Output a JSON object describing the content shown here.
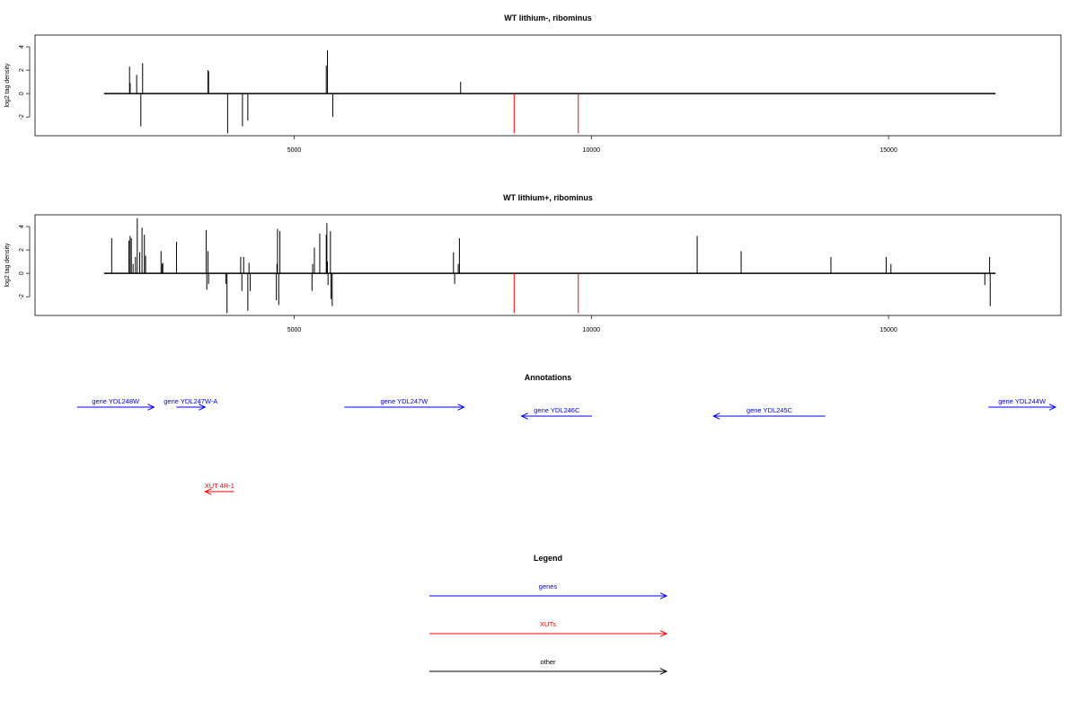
{
  "colors": {
    "genes": "#0000ff",
    "xuts": "#ff0000",
    "other": "#000000",
    "baseline": "#000000"
  },
  "chart_data": [
    {
      "type": "bar",
      "title": "WT lithium-, ribominus",
      "ylabel": "log2 tag density",
      "xlim": [
        640,
        17900
      ],
      "ylim": [
        -3.6,
        5.0
      ],
      "line_range": [
        1800,
        16800
      ],
      "yticks": [
        -2,
        0,
        2,
        4
      ],
      "xticks": [
        5000,
        10000,
        15000
      ],
      "grid": false,
      "bars": [
        {
          "x": 2230,
          "y": 2.3
        },
        {
          "x": 2240,
          "y": 0.9
        },
        {
          "x": 2350,
          "y": 1.6
        },
        {
          "x": 2420,
          "y": -2.8
        },
        {
          "x": 2450,
          "y": 2.6
        },
        {
          "x": 3550,
          "y": 2.0
        },
        {
          "x": 3560,
          "y": 1.9
        },
        {
          "x": 3880,
          "y": -3.4
        },
        {
          "x": 4130,
          "y": -2.8
        },
        {
          "x": 4220,
          "y": -2.3
        },
        {
          "x": 5540,
          "y": 2.4
        },
        {
          "x": 5560,
          "y": 3.7
        },
        {
          "x": 5650,
          "y": -2.0
        },
        {
          "x": 7800,
          "y": 1.0
        },
        {
          "x": 8700,
          "y": -3.4,
          "red": true
        },
        {
          "x": 9780,
          "y": -3.4,
          "red": true
        }
      ]
    },
    {
      "type": "bar",
      "title": "WT lithium+, ribominus",
      "ylabel": "log2 tag density",
      "xlim": [
        640,
        17900
      ],
      "ylim": [
        -3.6,
        5.0
      ],
      "line_range": [
        1800,
        16800
      ],
      "yticks": [
        -2,
        0,
        2,
        4
      ],
      "xticks": [
        5000,
        10000,
        15000
      ],
      "grid": false,
      "bars": [
        {
          "x": 1930,
          "y": 3.0
        },
        {
          "x": 2220,
          "y": 2.8
        },
        {
          "x": 2240,
          "y": 3.2
        },
        {
          "x": 2260,
          "y": 3.0
        },
        {
          "x": 2290,
          "y": 0.8
        },
        {
          "x": 2330,
          "y": 1.4
        },
        {
          "x": 2360,
          "y": 4.7
        },
        {
          "x": 2400,
          "y": 1.8
        },
        {
          "x": 2440,
          "y": 3.9
        },
        {
          "x": 2480,
          "y": 3.3
        },
        {
          "x": 2500,
          "y": 1.5
        },
        {
          "x": 2760,
          "y": 1.9
        },
        {
          "x": 2780,
          "y": 0.8
        },
        {
          "x": 2790,
          "y": 0.9
        },
        {
          "x": 3020,
          "y": 2.7
        },
        {
          "x": 3520,
          "y": 3.7
        },
        {
          "x": 3530,
          "y": -1.4
        },
        {
          "x": 3550,
          "y": 1.9
        },
        {
          "x": 3560,
          "y": -0.9
        },
        {
          "x": 3850,
          "y": -0.9
        },
        {
          "x": 3870,
          "y": -3.4
        },
        {
          "x": 4100,
          "y": 1.4
        },
        {
          "x": 4120,
          "y": -1.5
        },
        {
          "x": 4150,
          "y": 1.4
        },
        {
          "x": 4220,
          "y": -3.2
        },
        {
          "x": 4240,
          "y": 0.9
        },
        {
          "x": 4260,
          "y": -1.5
        },
        {
          "x": 4700,
          "y": -2.3
        },
        {
          "x": 4710,
          "y": 0.8
        },
        {
          "x": 4720,
          "y": 3.8
        },
        {
          "x": 4740,
          "y": -2.7
        },
        {
          "x": 4760,
          "y": 3.6
        },
        {
          "x": 5300,
          "y": -1.5
        },
        {
          "x": 5310,
          "y": 0.8
        },
        {
          "x": 5340,
          "y": 2.2
        },
        {
          "x": 5430,
          "y": 3.4
        },
        {
          "x": 5540,
          "y": 3.3
        },
        {
          "x": 5550,
          "y": 4.3
        },
        {
          "x": 5560,
          "y": 1.0
        },
        {
          "x": 5570,
          "y": -1.0
        },
        {
          "x": 5610,
          "y": 3.6
        },
        {
          "x": 5620,
          "y": -2.2
        },
        {
          "x": 5640,
          "y": -2.8
        },
        {
          "x": 7680,
          "y": 1.8
        },
        {
          "x": 7700,
          "y": -0.9
        },
        {
          "x": 7760,
          "y": 0.8
        },
        {
          "x": 7780,
          "y": 3.0
        },
        {
          "x": 8700,
          "y": -3.4,
          "red": true
        },
        {
          "x": 9780,
          "y": -3.4,
          "red": true
        },
        {
          "x": 11780,
          "y": 3.2
        },
        {
          "x": 12520,
          "y": 1.9
        },
        {
          "x": 14030,
          "y": 1.4
        },
        {
          "x": 14960,
          "y": 1.4
        },
        {
          "x": 15040,
          "y": 0.8
        },
        {
          "x": 16620,
          "y": -1.0
        },
        {
          "x": 16700,
          "y": 1.4
        },
        {
          "x": 16710,
          "y": -2.8
        }
      ]
    }
  ],
  "annotations": {
    "title": "Annotations",
    "features": [
      {
        "label": "gene YDL248W",
        "kind": "genes",
        "strand": "+",
        "start": 1800,
        "end": 4200,
        "row": 0
      },
      {
        "label": "gene YDL247W-A",
        "kind": "genes",
        "strand": "+",
        "start": 4900,
        "end": 5800,
        "row": 0
      },
      {
        "label": "gene YDL247W",
        "kind": "genes",
        "strand": "+",
        "start": 10150,
        "end": 13900,
        "row": 0
      },
      {
        "label": "gene YDL246C",
        "kind": "genes",
        "strand": "-",
        "start": 15700,
        "end": 17900,
        "row": 1
      },
      {
        "label": "gene YDL245C",
        "kind": "genes",
        "strand": "-",
        "start": 21700,
        "end": 25200,
        "row": 1
      },
      {
        "label": "gene YDL244W",
        "kind": "genes",
        "strand": "+",
        "start": 30300,
        "end": 32400,
        "row": 0
      },
      {
        "label": "XUT 4R-1",
        "kind": "xuts",
        "strand": "-",
        "start": 5800,
        "end": 6700,
        "row": 2
      }
    ]
  },
  "legend": {
    "title": "Legend",
    "items": [
      {
        "label": "genes",
        "kind": "genes"
      },
      {
        "label": "XUTs",
        "kind": "xuts"
      },
      {
        "label": "other",
        "kind": "other"
      }
    ]
  }
}
